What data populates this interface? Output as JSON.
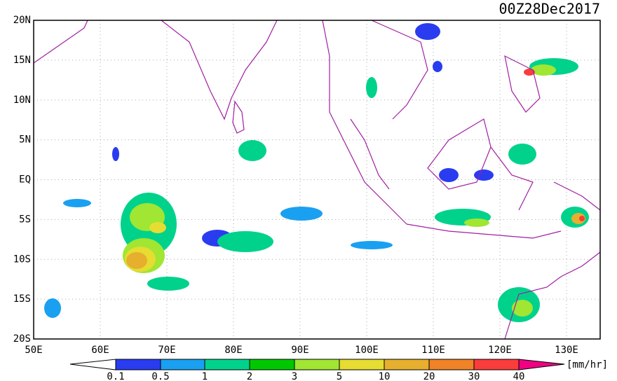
{
  "header": {
    "title": "00Z28Dec2017"
  },
  "map": {
    "lat_labels": [
      "20N",
      "15N",
      "10N",
      "5N",
      "EQ",
      "5S",
      "10S",
      "15S",
      "20S"
    ],
    "lon_labels": [
      "50E",
      "60E",
      "70E",
      "80E",
      "90E",
      "100E",
      "110E",
      "120E",
      "130E"
    ]
  },
  "colorbar": {
    "labels": [
      "0.1",
      "0.5",
      "1",
      "2",
      "3",
      "5",
      "10",
      "20",
      "30",
      "40"
    ],
    "unit": "[mm/hr]"
  }
}
